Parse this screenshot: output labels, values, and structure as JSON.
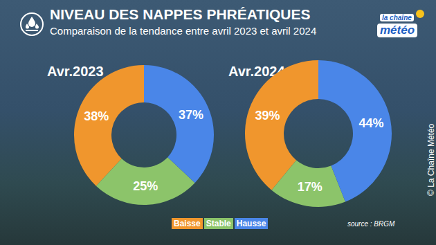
{
  "title": "NIVEAU DES NAPPES PHRÉATIQUES",
  "subtitle": "Comparaison de la tendance entre avril 2023 et avril 2024",
  "source": "source : BRGM",
  "credit": "© La Chaîne Météo",
  "logo": {
    "line1": "la chaîne",
    "line2": "météo"
  },
  "chart_data": [
    {
      "type": "pie",
      "title": "Avr.2023",
      "categories": [
        "Baisse",
        "Stable",
        "Hausse"
      ],
      "values": [
        38,
        25,
        37
      ],
      "value_labels": [
        "38%",
        "25%",
        "37%"
      ],
      "colors": [
        "#f0962d",
        "#8cc46a",
        "#4a86e8"
      ],
      "data_labels": true
    },
    {
      "type": "pie",
      "title": "Avr.2024",
      "categories": [
        "Baisse",
        "Stable",
        "Hausse"
      ],
      "values": [
        39,
        17,
        44
      ],
      "value_labels": [
        "39%",
        "17%",
        "44%"
      ],
      "colors": [
        "#f0962d",
        "#8cc46a",
        "#4a86e8"
      ],
      "data_labels": true
    }
  ]
}
